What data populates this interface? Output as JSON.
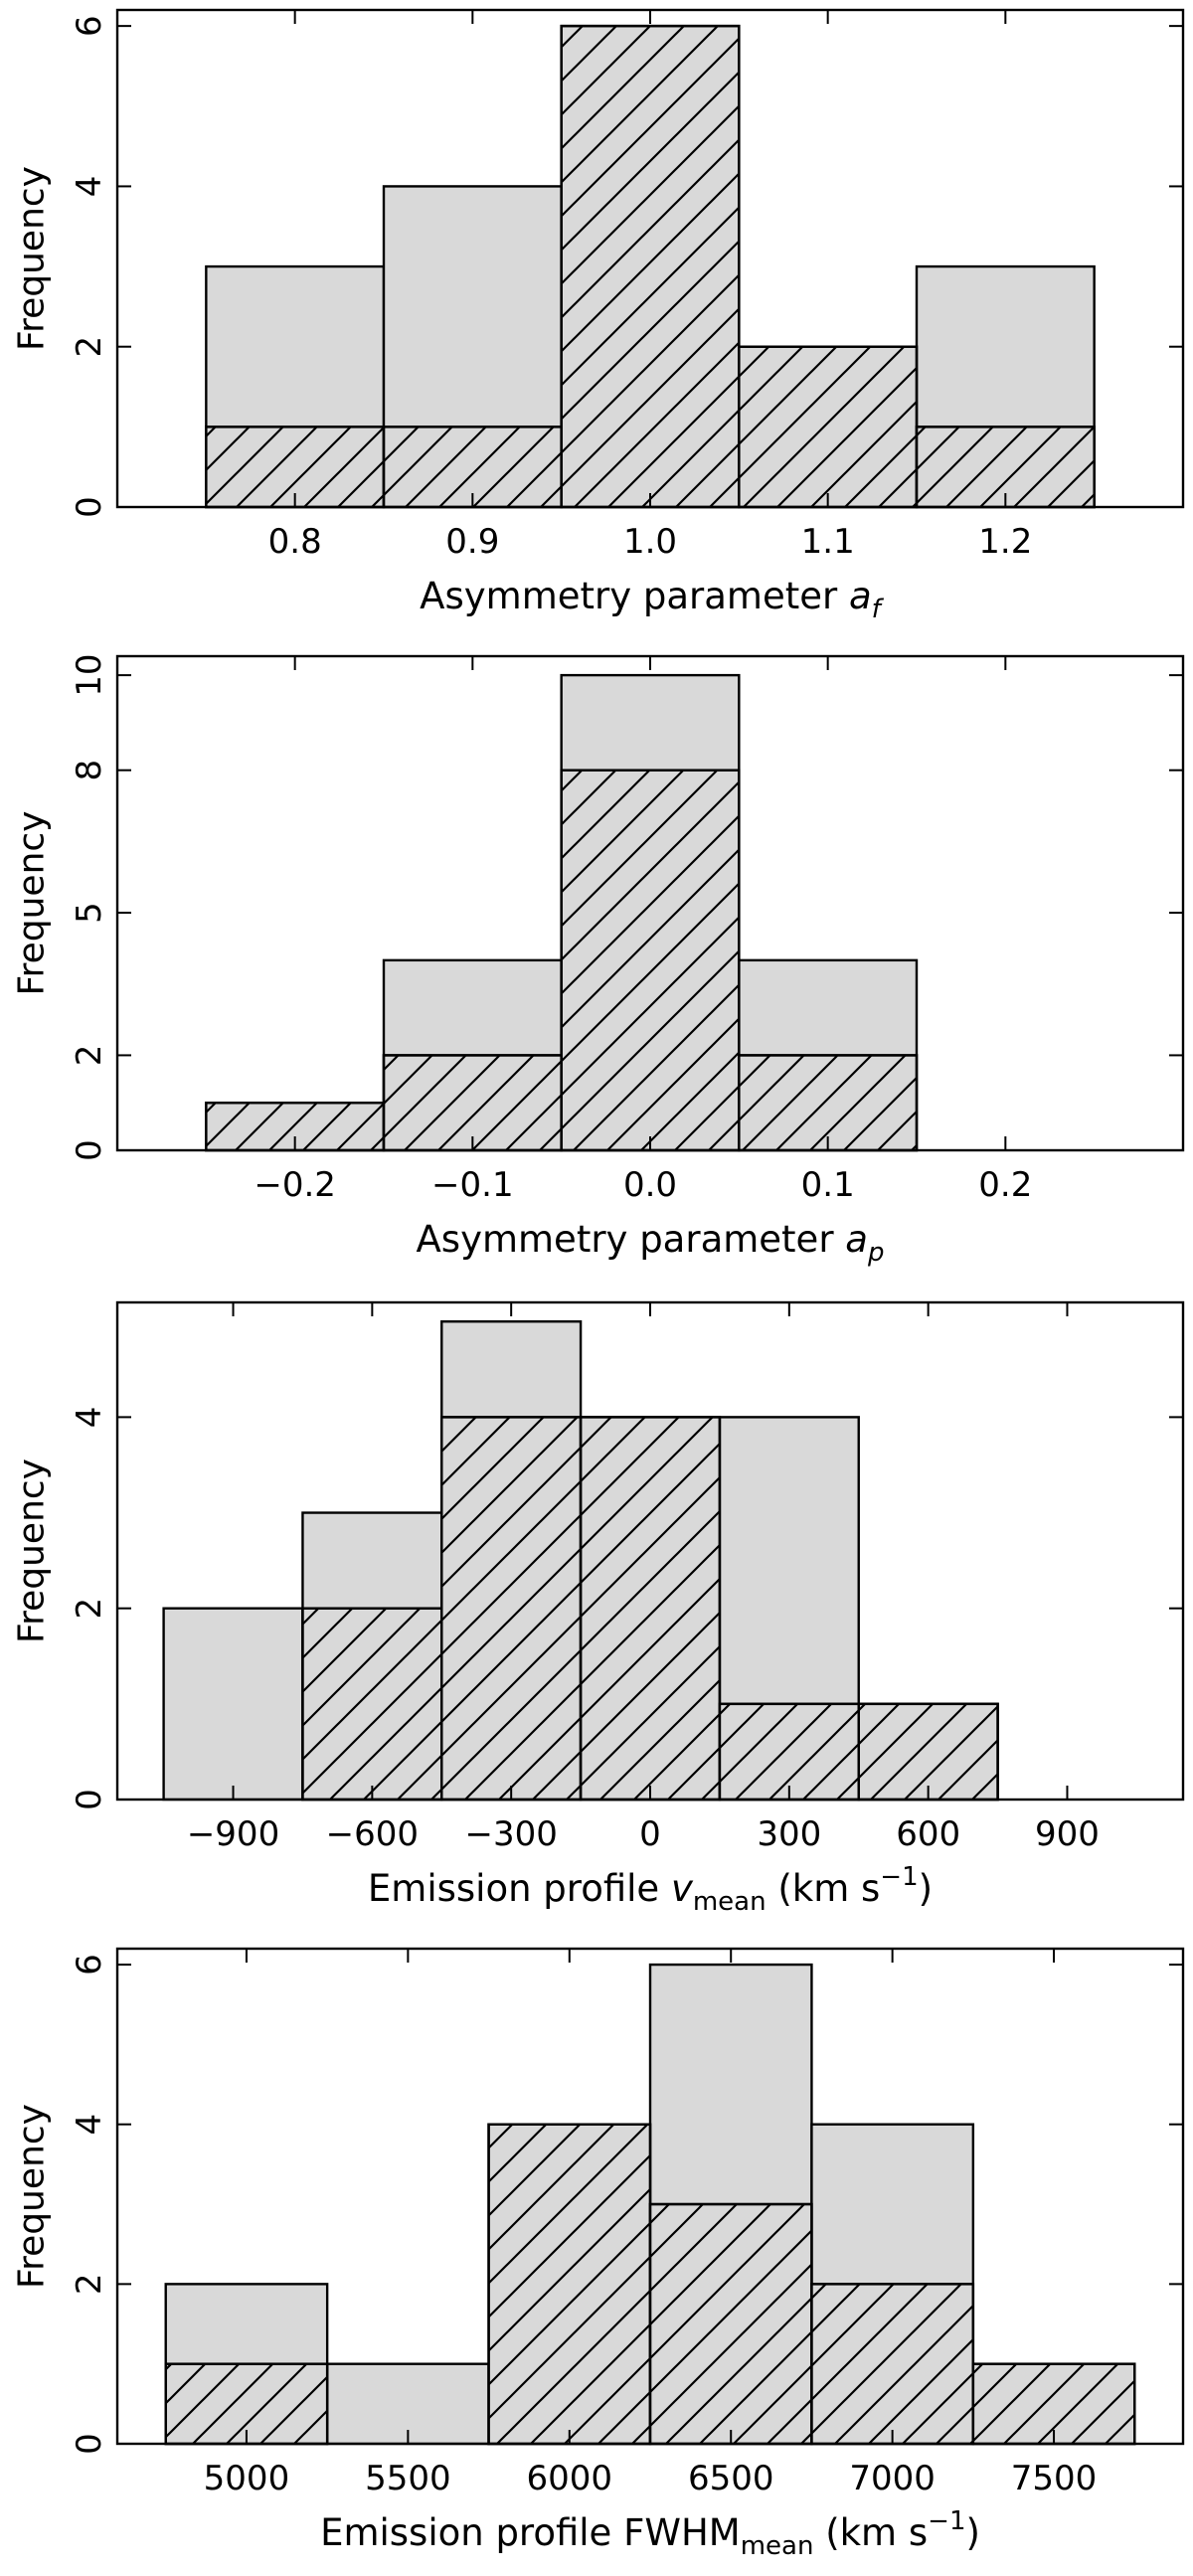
{
  "chart_data": [
    {
      "type": "bar",
      "xlabel": "Asymmetry parameter",
      "xlabel_sub": "f",
      "xlabel_sub_italic": true,
      "xlabel_tail": "",
      "xlabel_var": "a",
      "ylabel": "Frequency",
      "bin_edges": [
        0.75,
        0.85,
        0.95,
        1.05,
        1.15,
        1.25
      ],
      "series": [
        {
          "values": [
            3,
            4,
            6,
            2,
            3
          ],
          "fill": "#d9d9d9",
          "hatch": false
        },
        {
          "values": [
            1,
            1,
            6,
            2,
            1
          ],
          "fill": "#d9d9d9",
          "hatch": true
        }
      ],
      "xlim": [
        0.7,
        1.3
      ],
      "ylim": [
        0,
        6.2
      ],
      "xticks": [
        0.8,
        0.9,
        1.0,
        1.1,
        1.2
      ],
      "xtick_labels": [
        "0.8",
        "0.9",
        "1.0",
        "1.1",
        "1.2"
      ],
      "yticks": [
        0,
        2,
        4,
        6
      ],
      "ytick_labels": [
        "0",
        "2",
        "4",
        "6"
      ]
    },
    {
      "type": "bar",
      "xlabel": "Asymmetry parameter",
      "xlabel_sub": "p",
      "xlabel_sub_italic": true,
      "xlabel_tail": "",
      "xlabel_var": "a",
      "ylabel": "Frequency",
      "bin_edges": [
        -0.25,
        -0.15,
        -0.05,
        0.05,
        0.15,
        0.25
      ],
      "series": [
        {
          "values": [
            1,
            4,
            10,
            4,
            0
          ],
          "fill": "#d9d9d9",
          "hatch": false
        },
        {
          "values": [
            1,
            2,
            8,
            2,
            0
          ],
          "fill": "#d9d9d9",
          "hatch": true
        }
      ],
      "xlim": [
        -0.3,
        0.3
      ],
      "ylim": [
        0,
        10.4
      ],
      "xticks": [
        -0.2,
        -0.1,
        0.0,
        0.1,
        0.2
      ],
      "xtick_labels": [
        "−0.2",
        "−0.1",
        "0.0",
        "0.1",
        "0.2"
      ],
      "yticks": [
        0,
        2,
        5,
        8,
        10
      ],
      "ytick_labels": [
        "0",
        "2",
        "5",
        "8",
        "10"
      ]
    },
    {
      "type": "bar",
      "xlabel": "Emission profile",
      "xlabel_var": "v",
      "xlabel_sub": "mean",
      "xlabel_sub_italic": false,
      "xlabel_tail": " (km s",
      "xlabel_sup": "−1",
      "xlabel_end": ")",
      "ylabel": "Frequency",
      "bin_edges": [
        -1050,
        -750,
        -450,
        -150,
        150,
        450,
        750,
        1050
      ],
      "series": [
        {
          "values": [
            2,
            3,
            5,
            4,
            4,
            1,
            0
          ],
          "fill": "#d9d9d9",
          "hatch": false
        },
        {
          "values": [
            0,
            2,
            4,
            4,
            1,
            1,
            0
          ],
          "fill": "#d9d9d9",
          "hatch": true
        }
      ],
      "xlim": [
        -1150,
        1150
      ],
      "ylim": [
        0,
        5.2
      ],
      "xticks": [
        -900,
        -600,
        -300,
        0,
        300,
        600,
        900
      ],
      "xtick_labels": [
        "−900",
        "−600",
        "−300",
        "0",
        "300",
        "600",
        "900"
      ],
      "yticks": [
        0,
        2,
        4
      ],
      "ytick_labels": [
        "0",
        "2",
        "4"
      ]
    },
    {
      "type": "bar",
      "xlabel": "Emission profile FWHM",
      "xlabel_var": "",
      "xlabel_sub": "mean",
      "xlabel_sub_italic": false,
      "xlabel_tail": " (km s",
      "xlabel_sup": "−1",
      "xlabel_end": ")",
      "ylabel": "Frequency",
      "bin_edges": [
        4750,
        5250,
        5750,
        6250,
        6750,
        7250,
        7750
      ],
      "series": [
        {
          "values": [
            2,
            1,
            4,
            6,
            4,
            1
          ],
          "fill": "#d9d9d9",
          "hatch": false
        },
        {
          "values": [
            1,
            0,
            4,
            3,
            2,
            1
          ],
          "fill": "#d9d9d9",
          "hatch": true
        }
      ],
      "xlim": [
        4600,
        7900
      ],
      "ylim": [
        0,
        6.2
      ],
      "xticks": [
        5000,
        5500,
        6000,
        6500,
        7000,
        7500
      ],
      "xtick_labels": [
        "5000",
        "5500",
        "6000",
        "6500",
        "7000",
        "7500"
      ],
      "yticks": [
        0,
        2,
        4,
        6
      ],
      "ytick_labels": [
        "0",
        "2",
        "4",
        "6"
      ]
    }
  ]
}
